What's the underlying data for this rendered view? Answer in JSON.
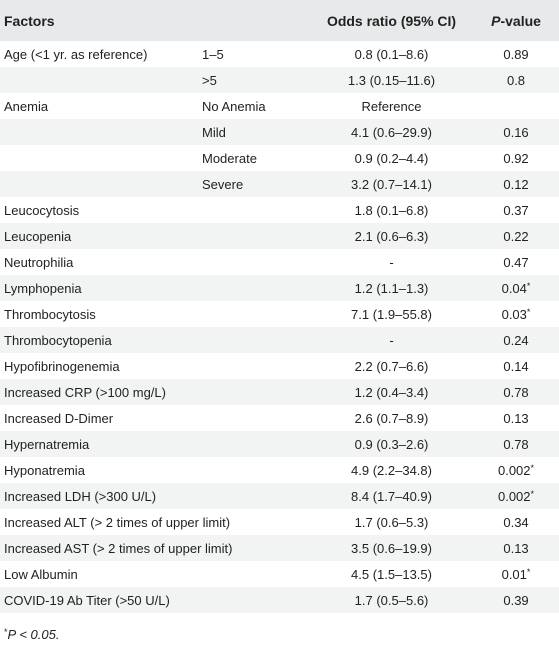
{
  "header": {
    "factors": "Factors",
    "odds_ratio": "Odds ratio (95% CI)",
    "p_italic": "P",
    "p_suffix": "-value"
  },
  "rows": [
    {
      "factor": "Age (<1 yr. as reference)",
      "sub": "1–5",
      "odds": "0.8 (0.1–8.6)",
      "p": "0.89",
      "mark": ""
    },
    {
      "factor": "",
      "sub": ">5",
      "odds": "1.3 (0.15–11.6)",
      "p": "0.8",
      "mark": ""
    },
    {
      "factor": "Anemia",
      "sub": "No Anemia",
      "odds": "Reference",
      "p": "",
      "mark": ""
    },
    {
      "factor": "",
      "sub": "Mild",
      "odds": "4.1 (0.6–29.9)",
      "p": "0.16",
      "mark": ""
    },
    {
      "factor": "",
      "sub": "Moderate",
      "odds": "0.9 (0.2–4.4)",
      "p": "0.92",
      "mark": ""
    },
    {
      "factor": "",
      "sub": "Severe",
      "odds": "3.2 (0.7–14.1)",
      "p": "0.12",
      "mark": ""
    },
    {
      "factor": "Leucocytosis",
      "sub": "",
      "odds": "1.8 (0.1–6.8)",
      "p": "0.37",
      "mark": ""
    },
    {
      "factor": "Leucopenia",
      "sub": "",
      "odds": "2.1 (0.6–6.3)",
      "p": "0.22",
      "mark": ""
    },
    {
      "factor": "Neutrophilia",
      "sub": "",
      "odds": "-",
      "p": "0.47",
      "mark": ""
    },
    {
      "factor": "Lymphopenia",
      "sub": "",
      "odds": "1.2 (1.1–1.3)",
      "p": "0.04",
      "mark": "*"
    },
    {
      "factor": "Thrombocytosis",
      "sub": "",
      "odds": "7.1 (1.9–55.8)",
      "p": "0.03",
      "mark": "*"
    },
    {
      "factor": "Thrombocytopenia",
      "sub": "",
      "odds": "-",
      "p": "0.24",
      "mark": ""
    },
    {
      "factor": "Hypofibrinogenemia",
      "sub": "",
      "odds": "2.2 (0.7–6.6)",
      "p": "0.14",
      "mark": ""
    },
    {
      "factor": "Increased CRP (>100 mg/L)",
      "sub": "",
      "odds": "1.2 (0.4–3.4)",
      "p": "0.78",
      "mark": ""
    },
    {
      "factor": "Increased D-Dimer",
      "sub": "",
      "odds": "2.6 (0.7–8.9)",
      "p": "0.13",
      "mark": ""
    },
    {
      "factor": "Hypernatremia",
      "sub": "",
      "odds": "0.9 (0.3–2.6)",
      "p": "0.78",
      "mark": ""
    },
    {
      "factor": "Hyponatremia",
      "sub": "",
      "odds": "4.9 (2.2–34.8)",
      "p": "0.002",
      "mark": "*"
    },
    {
      "factor": "Increased LDH (>300 U/L)",
      "sub": "",
      "odds": "8.4 (1.7–40.9)",
      "p": "0.002",
      "mark": "*"
    },
    {
      "factor": "Increased ALT (> 2 times of upper limit)",
      "sub": "",
      "odds": "1.7 (0.6–5.3)",
      "p": "0.34",
      "mark": ""
    },
    {
      "factor": "Increased AST (> 2 times of upper limit)",
      "sub": "",
      "odds": "3.5 (0.6–19.9)",
      "p": "0.13",
      "mark": ""
    },
    {
      "factor": "Low Albumin",
      "sub": "",
      "odds": "4.5 (1.5–13.5)",
      "p": "0.01",
      "mark": "*"
    },
    {
      "factor": "COVID-19 Ab Titer (>50 U/L)",
      "sub": "",
      "odds": "1.7 (0.5–5.6)",
      "p": "0.39",
      "mark": ""
    }
  ],
  "footnote": {
    "mark": "*",
    "text": "P < 0.05."
  },
  "colors": {
    "header_bg": "#e8e9ea",
    "stripe_bg": "#f2f3f3",
    "text": "#222222"
  }
}
